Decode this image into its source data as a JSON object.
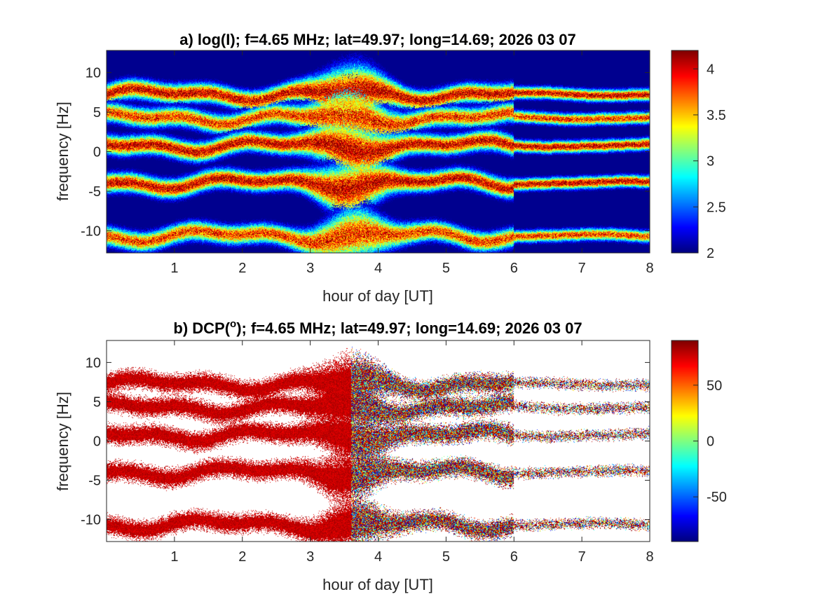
{
  "chart_data": [
    {
      "type": "heatmap",
      "title": "a) log(I); f=4.65 MHz;  lat=49.97; long=14.69; 2026 03 07",
      "xlabel": "hour of day [UT]",
      "ylabel": "frequency [Hz]",
      "xlim": [
        0,
        8
      ],
      "ylim": [
        -12.8,
        12.8
      ],
      "xticks": [
        1,
        2,
        3,
        4,
        5,
        6,
        7,
        8
      ],
      "yticks": [
        -10,
        -5,
        0,
        5,
        10
      ],
      "colormap": "jet",
      "background": "#00008f",
      "colorbar": {
        "range": [
          2,
          4.2
        ],
        "ticks": [
          2,
          2.5,
          3,
          3.5,
          4
        ],
        "tick_labels": [
          "2",
          "2.5",
          "3",
          "3.5",
          "4"
        ]
      },
      "bands": [
        {
          "center_hz": 7.3,
          "level": 4.2
        },
        {
          "center_hz": 4.3,
          "level": 4.0
        },
        {
          "center_hz": 0.8,
          "level": 4.2
        },
        {
          "center_hz": -3.9,
          "level": 4.2
        },
        {
          "center_hz": -10.6,
          "level": 4.0
        }
      ],
      "broadening_hours": [
        2.8,
        4.4
      ],
      "grid": false
    },
    {
      "type": "heatmap",
      "title": "b) DCP(",
      "title_superscript": "o",
      "title_suffix": "); f=4.65 MHz;  lat=49.97; long=14.69; 2026 03 07",
      "xlabel": "hour of day [UT]",
      "ylabel": "frequency [Hz]",
      "xlim": [
        0,
        8
      ],
      "ylim": [
        -12.8,
        12.8
      ],
      "xticks": [
        1,
        2,
        3,
        4,
        5,
        6,
        7,
        8
      ],
      "yticks": [
        -10,
        -5,
        0,
        5,
        10
      ],
      "colormap": "jet",
      "background": "#ffffff",
      "colorbar": {
        "range": [
          -90,
          90
        ],
        "ticks": [
          -50,
          0,
          50
        ],
        "tick_labels": [
          "-50",
          "0",
          "50"
        ]
      },
      "bands": [
        {
          "center_hz": 7.3
        },
        {
          "center_hz": 4.3
        },
        {
          "center_hz": 0.8
        },
        {
          "center_hz": -3.9
        },
        {
          "center_hz": -10.6
        }
      ],
      "dominant_value_before_hour": 85,
      "mixed_values_after_hour": 3.6,
      "grid": false
    }
  ]
}
